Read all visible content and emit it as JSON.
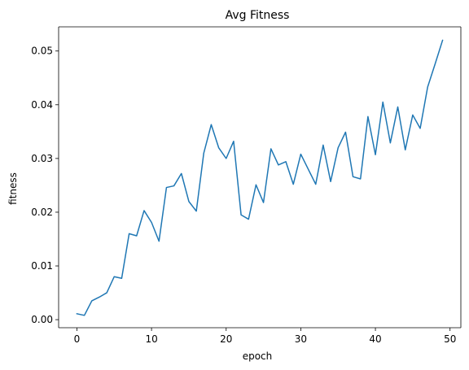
{
  "chart_data": {
    "type": "line",
    "title": "Avg Fitness",
    "xlabel": "epoch",
    "ylabel": "fitness",
    "xlim": [
      -2.45,
      51.45
    ],
    "ylim": [
      -0.0015,
      0.0545
    ],
    "grid": false,
    "xticks": [
      0,
      10,
      20,
      30,
      40,
      50
    ],
    "xtick_labels": [
      "0",
      "10",
      "20",
      "30",
      "40",
      "50"
    ],
    "yticks": [
      0.0,
      0.01,
      0.02,
      0.03,
      0.04,
      0.05
    ],
    "ytick_labels": [
      "0.00",
      "0.01",
      "0.02",
      "0.03",
      "0.04",
      "0.05"
    ],
    "color": "#1f77b4",
    "series": [
      {
        "x": [
          0,
          1,
          2,
          3,
          4,
          5,
          6,
          7,
          8,
          9,
          10,
          11,
          12,
          13,
          14,
          15,
          16,
          17,
          18,
          19,
          20,
          21,
          22,
          23,
          24,
          25,
          26,
          27,
          28,
          29,
          30,
          31,
          32,
          33,
          34,
          35,
          36,
          37,
          38,
          39,
          40,
          41,
          42,
          43,
          44,
          45,
          46,
          47,
          48,
          49
        ],
        "values": [
          0.0011,
          0.0008,
          0.0035,
          0.0042,
          0.005,
          0.008,
          0.0077,
          0.016,
          0.0156,
          0.0203,
          0.0181,
          0.0146,
          0.0246,
          0.0249,
          0.0272,
          0.022,
          0.0202,
          0.031,
          0.0363,
          0.032,
          0.03,
          0.0332,
          0.0195,
          0.0187,
          0.0251,
          0.0218,
          0.0318,
          0.0288,
          0.0294,
          0.0252,
          0.0308,
          0.028,
          0.0252,
          0.0325,
          0.0257,
          0.032,
          0.0349,
          0.0266,
          0.0262,
          0.0378,
          0.0307,
          0.0405,
          0.0329,
          0.0396,
          0.0316,
          0.0381,
          0.0356,
          0.0433,
          0.0476,
          0.052
        ]
      }
    ]
  }
}
